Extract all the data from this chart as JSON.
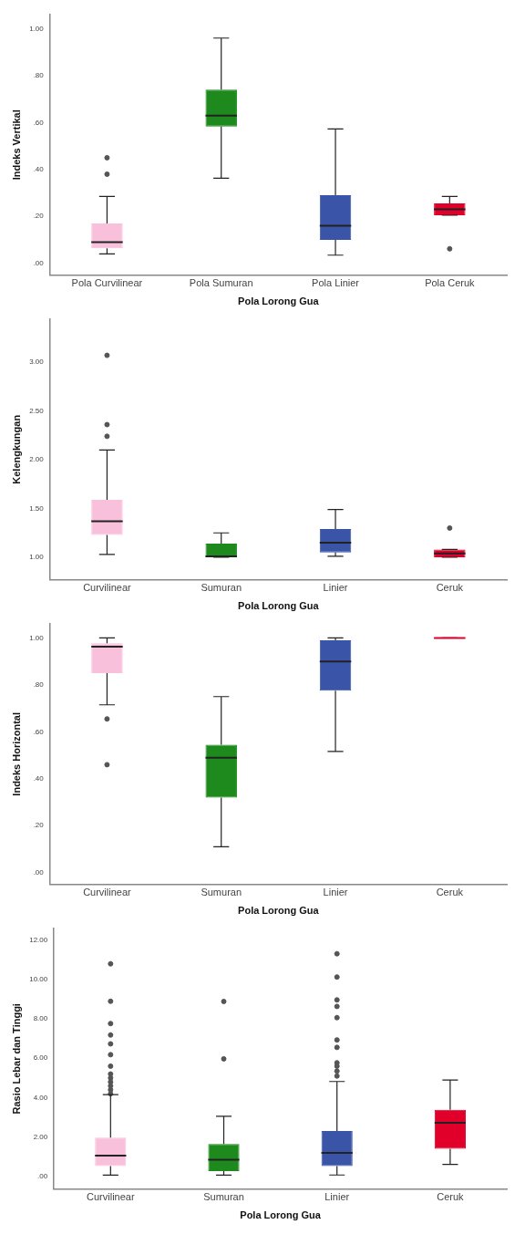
{
  "chart_data": [
    {
      "type": "box",
      "xlabel": "Pola Lorong Gua",
      "ylabel": "Indeks Vertikal",
      "categories": [
        "Pola Curvilinear",
        "Pola Sumuran",
        "Pola Linier",
        "Pola Ceruk"
      ],
      "colors": [
        "#f9c0dc",
        "#1e8a1e",
        "#3a55a8",
        "#e0002a"
      ],
      "ylim": [
        -0.05,
        1.06
      ],
      "yticks": [
        {
          "value": 0,
          "label": ".00"
        },
        {
          "value": 0.2,
          "label": ".20"
        },
        {
          "value": 0.4,
          "label": ".40"
        },
        {
          "value": 0.6,
          "label": ".60"
        },
        {
          "value": 0.8,
          "label": ".80"
        },
        {
          "value": 1,
          "label": "1.00"
        }
      ],
      "grid": false,
      "legend": false,
      "boxes": [
        {
          "low": 0.04,
          "q1": 0.064,
          "median": 0.09,
          "q3": 0.17,
          "high": 0.285,
          "outliers": [
            0.38,
            0.45
          ]
        },
        {
          "low": 0.363,
          "q1": 0.583,
          "median": 0.63,
          "q3": 0.74,
          "high": 0.96
        },
        {
          "low": 0.035,
          "q1": 0.1,
          "median": 0.16,
          "q3": 0.29,
          "high": 0.573
        },
        {
          "low": 0.205,
          "q1": 0.205,
          "median": 0.23,
          "q3": 0.255,
          "high": 0.285,
          "outliers": [
            0.062
          ]
        }
      ]
    },
    {
      "type": "box",
      "xlabel": "Pola Lorong Gua",
      "ylabel": "Kelengkungan",
      "categories": [
        "Curvilinear",
        "Sumuran",
        "Linier",
        "Ceruk"
      ],
      "colors": [
        "#f9c0dc",
        "#1e8a1e",
        "#3a55a8",
        "#e0002a"
      ],
      "ylim": [
        0.77,
        3.44
      ],
      "yticks": [
        {
          "value": 1,
          "label": "1.00"
        },
        {
          "value": 1.5,
          "label": "1.50"
        },
        {
          "value": 2,
          "label": "2.00"
        },
        {
          "value": 2.5,
          "label": "2.50"
        },
        {
          "value": 3,
          "label": "3.00"
        }
      ],
      "grid": false,
      "legend": false,
      "boxes": [
        {
          "low": 1.03,
          "q1": 1.23,
          "median": 1.37,
          "q3": 1.59,
          "high": 2.1,
          "outliers": [
            2.24,
            2.36,
            3.07
          ]
        },
        {
          "low": 1,
          "q1": 1,
          "median": 1.01,
          "q3": 1.14,
          "high": 1.25
        },
        {
          "low": 1.01,
          "q1": 1.05,
          "median": 1.15,
          "q3": 1.29,
          "high": 1.49
        },
        {
          "low": 1,
          "q1": 1,
          "median": 1.04,
          "q3": 1.08,
          "high": 1.08,
          "outliers": [
            1.3
          ]
        }
      ]
    },
    {
      "type": "box",
      "xlabel": "Pola Lorong Gua",
      "ylabel": "Indeks Horizontal",
      "categories": [
        "Curvilinear",
        "Sumuran",
        "Linier",
        "Ceruk"
      ],
      "colors": [
        "#f9c0dc",
        "#1e8a1e",
        "#3a55a8",
        "#e0002a"
      ],
      "ylim": [
        -0.05,
        1.06
      ],
      "yticks": [
        {
          "value": 0,
          "label": ".00"
        },
        {
          "value": 0.2,
          "label": ".20"
        },
        {
          "value": 0.4,
          "label": ".40"
        },
        {
          "value": 0.6,
          "label": ".60"
        },
        {
          "value": 0.8,
          "label": ".80"
        },
        {
          "value": 1,
          "label": "1.00"
        }
      ],
      "grid": false,
      "legend": false,
      "boxes": [
        {
          "low": 0.715,
          "q1": 0.85,
          "median": 0.963,
          "q3": 0.977,
          "high": 1,
          "outliers": [
            0.655,
            0.46
          ]
        },
        {
          "low": 0.11,
          "q1": 0.32,
          "median": 0.49,
          "q3": 0.545,
          "high": 0.75
        },
        {
          "low": 0.516,
          "q1": 0.775,
          "median": 0.9,
          "q3": 0.99,
          "high": 1
        },
        {
          "low": 1,
          "q1": 1,
          "median": 1,
          "q3": 1,
          "high": 1
        }
      ]
    },
    {
      "type": "box",
      "xlabel": "Pola Lorong Gua",
      "ylabel": "Rasio Lebar dan Tinggi",
      "categories": [
        "Curvilinear",
        "Sumuran",
        "Linier",
        "Ceruk"
      ],
      "colors": [
        "#f9c0dc",
        "#1e8a1e",
        "#3a55a8",
        "#e0002a"
      ],
      "ylim": [
        -0.63,
        12.58
      ],
      "yticks": [
        {
          "value": 0,
          "label": ".00"
        },
        {
          "value": 2,
          "label": "2.00"
        },
        {
          "value": 4,
          "label": "4.00"
        },
        {
          "value": 6,
          "label": "6.00"
        },
        {
          "value": 8,
          "label": "8.00"
        },
        {
          "value": 10,
          "label": "10.00"
        },
        {
          "value": 12,
          "label": "12.00"
        }
      ],
      "grid": false,
      "legend": false,
      "boxes": [
        {
          "low": 0.07,
          "q1": 0.53,
          "median": 1.06,
          "q3": 1.98,
          "high": 4.16,
          "outliers": [
            4.2,
            4.4,
            4.6,
            4.8,
            5,
            5.2,
            5.6,
            6.18,
            6.73,
            7.18,
            7.76,
            8.89,
            10.79
          ]
        },
        {
          "low": 0.07,
          "q1": 0.28,
          "median": 0.86,
          "q3": 1.65,
          "high": 3.06,
          "outliers": [
            5.97,
            8.88
          ]
        },
        {
          "low": 0.08,
          "q1": 0.53,
          "median": 1.2,
          "q3": 2.31,
          "high": 4.82,
          "outliers": [
            5.1,
            5.35,
            5.6,
            5.77,
            6.55,
            6.93,
            8.06,
            8.63,
            8.96,
            10.12,
            11.3
          ]
        },
        {
          "low": 0.62,
          "q1": 1.41,
          "median": 2.73,
          "q3": 3.39,
          "high": 4.9
        }
      ]
    }
  ]
}
